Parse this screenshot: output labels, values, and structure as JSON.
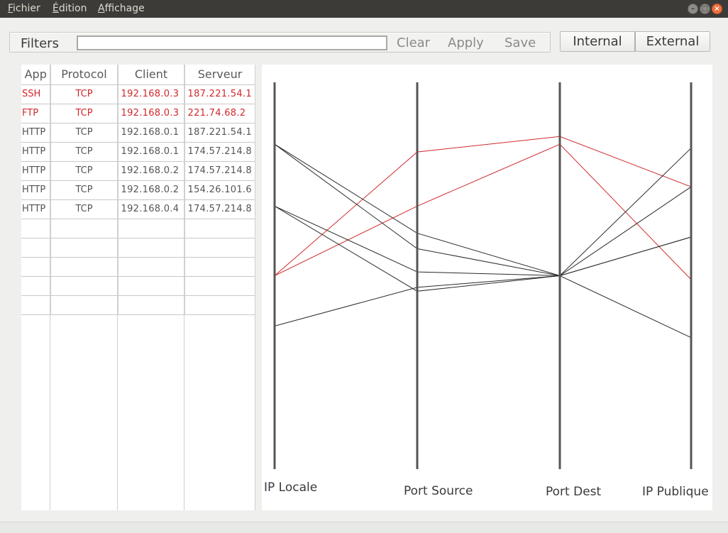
{
  "menu": {
    "items": [
      {
        "first": "F",
        "rest": "ichier"
      },
      {
        "first": "É",
        "rest": "dition"
      },
      {
        "first": "A",
        "rest": "ffichage"
      }
    ]
  },
  "toolbar": {
    "filters_label": "Filters",
    "filter_value": "",
    "clear_label": "Clear",
    "apply_label": "Apply",
    "save_label": "Save",
    "internal_label": "Internal",
    "external_label": "External"
  },
  "table": {
    "headers": [
      "App",
      "Protocol",
      "Client",
      "Serveur"
    ],
    "rows": [
      {
        "app": "SSH",
        "protocol": "TCP",
        "client": "192.168.0.3",
        "server": "187.221.54.1",
        "alert": true
      },
      {
        "app": "FTP",
        "protocol": "TCP",
        "client": "192.168.0.3",
        "server": "221.74.68.2",
        "alert": true
      },
      {
        "app": "HTTP",
        "protocol": "TCP",
        "client": "192.168.0.1",
        "server": "187.221.54.1",
        "alert": false
      },
      {
        "app": "HTTP",
        "protocol": "TCP",
        "client": "192.168.0.1",
        "server": "174.57.214.8",
        "alert": false
      },
      {
        "app": "HTTP",
        "protocol": "TCP",
        "client": "192.168.0.2",
        "server": "174.57.214.8",
        "alert": false
      },
      {
        "app": "HTTP",
        "protocol": "TCP",
        "client": "192.168.0.2",
        "server": "154.26.101.6",
        "alert": false
      },
      {
        "app": "HTTP",
        "protocol": "TCP",
        "client": "192.168.0.4",
        "server": "174.57.214.8",
        "alert": false
      }
    ],
    "empty_rows": 5
  },
  "colors": {
    "alert": "#d0282b",
    "normal_line": "#2a2a2a",
    "axis": "#555555"
  },
  "chart_data": {
    "type": "parallel-coordinates",
    "axes": [
      "IP Locale",
      "Port Source",
      "Port Dest",
      "IP Publique"
    ],
    "range": [
      0,
      100
    ],
    "lines": [
      {
        "values": [
          50,
          82,
          86,
          73
        ],
        "alert": true
      },
      {
        "values": [
          50,
          68,
          84,
          49
        ],
        "alert": true
      },
      {
        "values": [
          84,
          61,
          50,
          83
        ],
        "alert": false
      },
      {
        "values": [
          84,
          57,
          50,
          73
        ],
        "alert": false
      },
      {
        "values": [
          68,
          51,
          50,
          60
        ],
        "alert": false
      },
      {
        "values": [
          68,
          46,
          50,
          34
        ],
        "alert": false
      },
      {
        "values": [
          37,
          47,
          50,
          60
        ],
        "alert": false
      }
    ]
  }
}
